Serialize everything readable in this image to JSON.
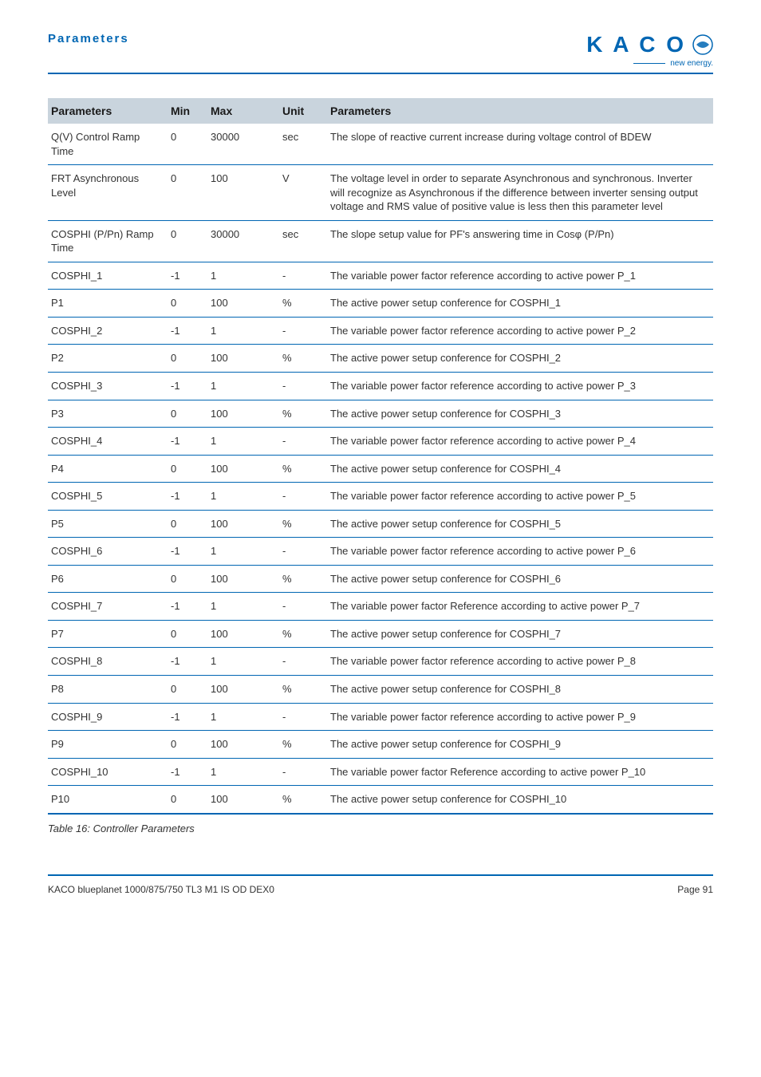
{
  "header": {
    "section_title": "Parameters",
    "logo_text": "K A C O",
    "logo_sub": "new energy."
  },
  "table": {
    "columns": [
      "Parameters",
      "Min",
      "Max",
      "Unit",
      "Parameters"
    ],
    "rows": [
      {
        "param": "Q(V) Control Ramp Time",
        "min": "0",
        "max": "30000",
        "unit": "sec",
        "desc": "The slope of reactive current increase during voltage control of BDEW"
      },
      {
        "param": "FRT Asynchronous Level",
        "min": "0",
        "max": "100",
        "unit": "V",
        "desc": "The voltage level in order to separate Asynchronous and synchronous. Inverter will recognize as Asynchronous if the difference between inverter sensing output voltage and RMS value of positive value is less then this parameter level"
      },
      {
        "param": "COSPHI (P/Pn) Ramp Time",
        "min": "0",
        "max": "30000",
        "unit": "sec",
        "desc": "The slope setup value for PF's answering time in Cosφ (P/Pn)"
      },
      {
        "param": "COSPHI_1",
        "min": "-1",
        "max": "1",
        "unit": "-",
        "desc": "The variable power factor reference according to active power P_1"
      },
      {
        "param": "P1",
        "min": "0",
        "max": "100",
        "unit": "%",
        "desc": "The active power setup conference for COSPHI_1"
      },
      {
        "param": "COSPHI_2",
        "min": "-1",
        "max": "1",
        "unit": "-",
        "desc": "The variable power factor reference according to active power P_2"
      },
      {
        "param": "P2",
        "min": "0",
        "max": "100",
        "unit": "%",
        "desc": "The active power setup conference for COSPHI_2"
      },
      {
        "param": "COSPHI_3",
        "min": "-1",
        "max": "1",
        "unit": "-",
        "desc": "The variable power factor reference according to active power P_3"
      },
      {
        "param": "P3",
        "min": "0",
        "max": "100",
        "unit": "%",
        "desc": "The active power setup conference for COSPHI_3"
      },
      {
        "param": "COSPHI_4",
        "min": "-1",
        "max": "1",
        "unit": "-",
        "desc": "The variable power factor reference according to active power P_4"
      },
      {
        "param": "P4",
        "min": "0",
        "max": "100",
        "unit": "%",
        "desc": "The active power setup conference for COSPHI_4"
      },
      {
        "param": "COSPHI_5",
        "min": "-1",
        "max": "1",
        "unit": "-",
        "desc": "The variable power factor reference according to active power P_5"
      },
      {
        "param": "P5",
        "min": "0",
        "max": "100",
        "unit": "%",
        "desc": "The active power setup conference for COSPHI_5"
      },
      {
        "param": "COSPHI_6",
        "min": "-1",
        "max": "1",
        "unit": "-",
        "desc": "The variable power factor reference according to active power P_6"
      },
      {
        "param": "P6",
        "min": "0",
        "max": "100",
        "unit": "%",
        "desc": "The active power setup conference for COSPHI_6"
      },
      {
        "param": "COSPHI_7",
        "min": "-1",
        "max": "1",
        "unit": "-",
        "desc": "The variable power factor Reference according to active power P_7"
      },
      {
        "param": "P7",
        "min": "0",
        "max": "100",
        "unit": "%",
        "desc": "The active power setup conference for COSPHI_7"
      },
      {
        "param": "COSPHI_8",
        "min": "-1",
        "max": "1",
        "unit": "-",
        "desc": "The variable power factor reference according to active power P_8"
      },
      {
        "param": "P8",
        "min": "0",
        "max": "100",
        "unit": "%",
        "desc": "The active power setup conference for COSPHI_8"
      },
      {
        "param": "COSPHI_9",
        "min": "-1",
        "max": "1",
        "unit": "-",
        "desc": "The variable power factor reference according to active power P_9"
      },
      {
        "param": "P9",
        "min": "0",
        "max": "100",
        "unit": "%",
        "desc": "The active power setup conference for COSPHI_9"
      },
      {
        "param": "COSPHI_10",
        "min": "-1",
        "max": "1",
        "unit": "-",
        "desc": "The variable power factor Reference according to active power P_10"
      },
      {
        "param": "P10",
        "min": "0",
        "max": "100",
        "unit": "%",
        "desc": "The active power setup conference for COSPHI_10"
      }
    ]
  },
  "caption": "Table 16:  Controller Parameters",
  "footer": {
    "left": "KACO blueplanet 1000/875/750 TL3 M1 IS OD DEX0",
    "right": "Page 91"
  },
  "colors": {
    "brand_blue": "#0066b3",
    "header_bg": "#c9d4dd"
  }
}
